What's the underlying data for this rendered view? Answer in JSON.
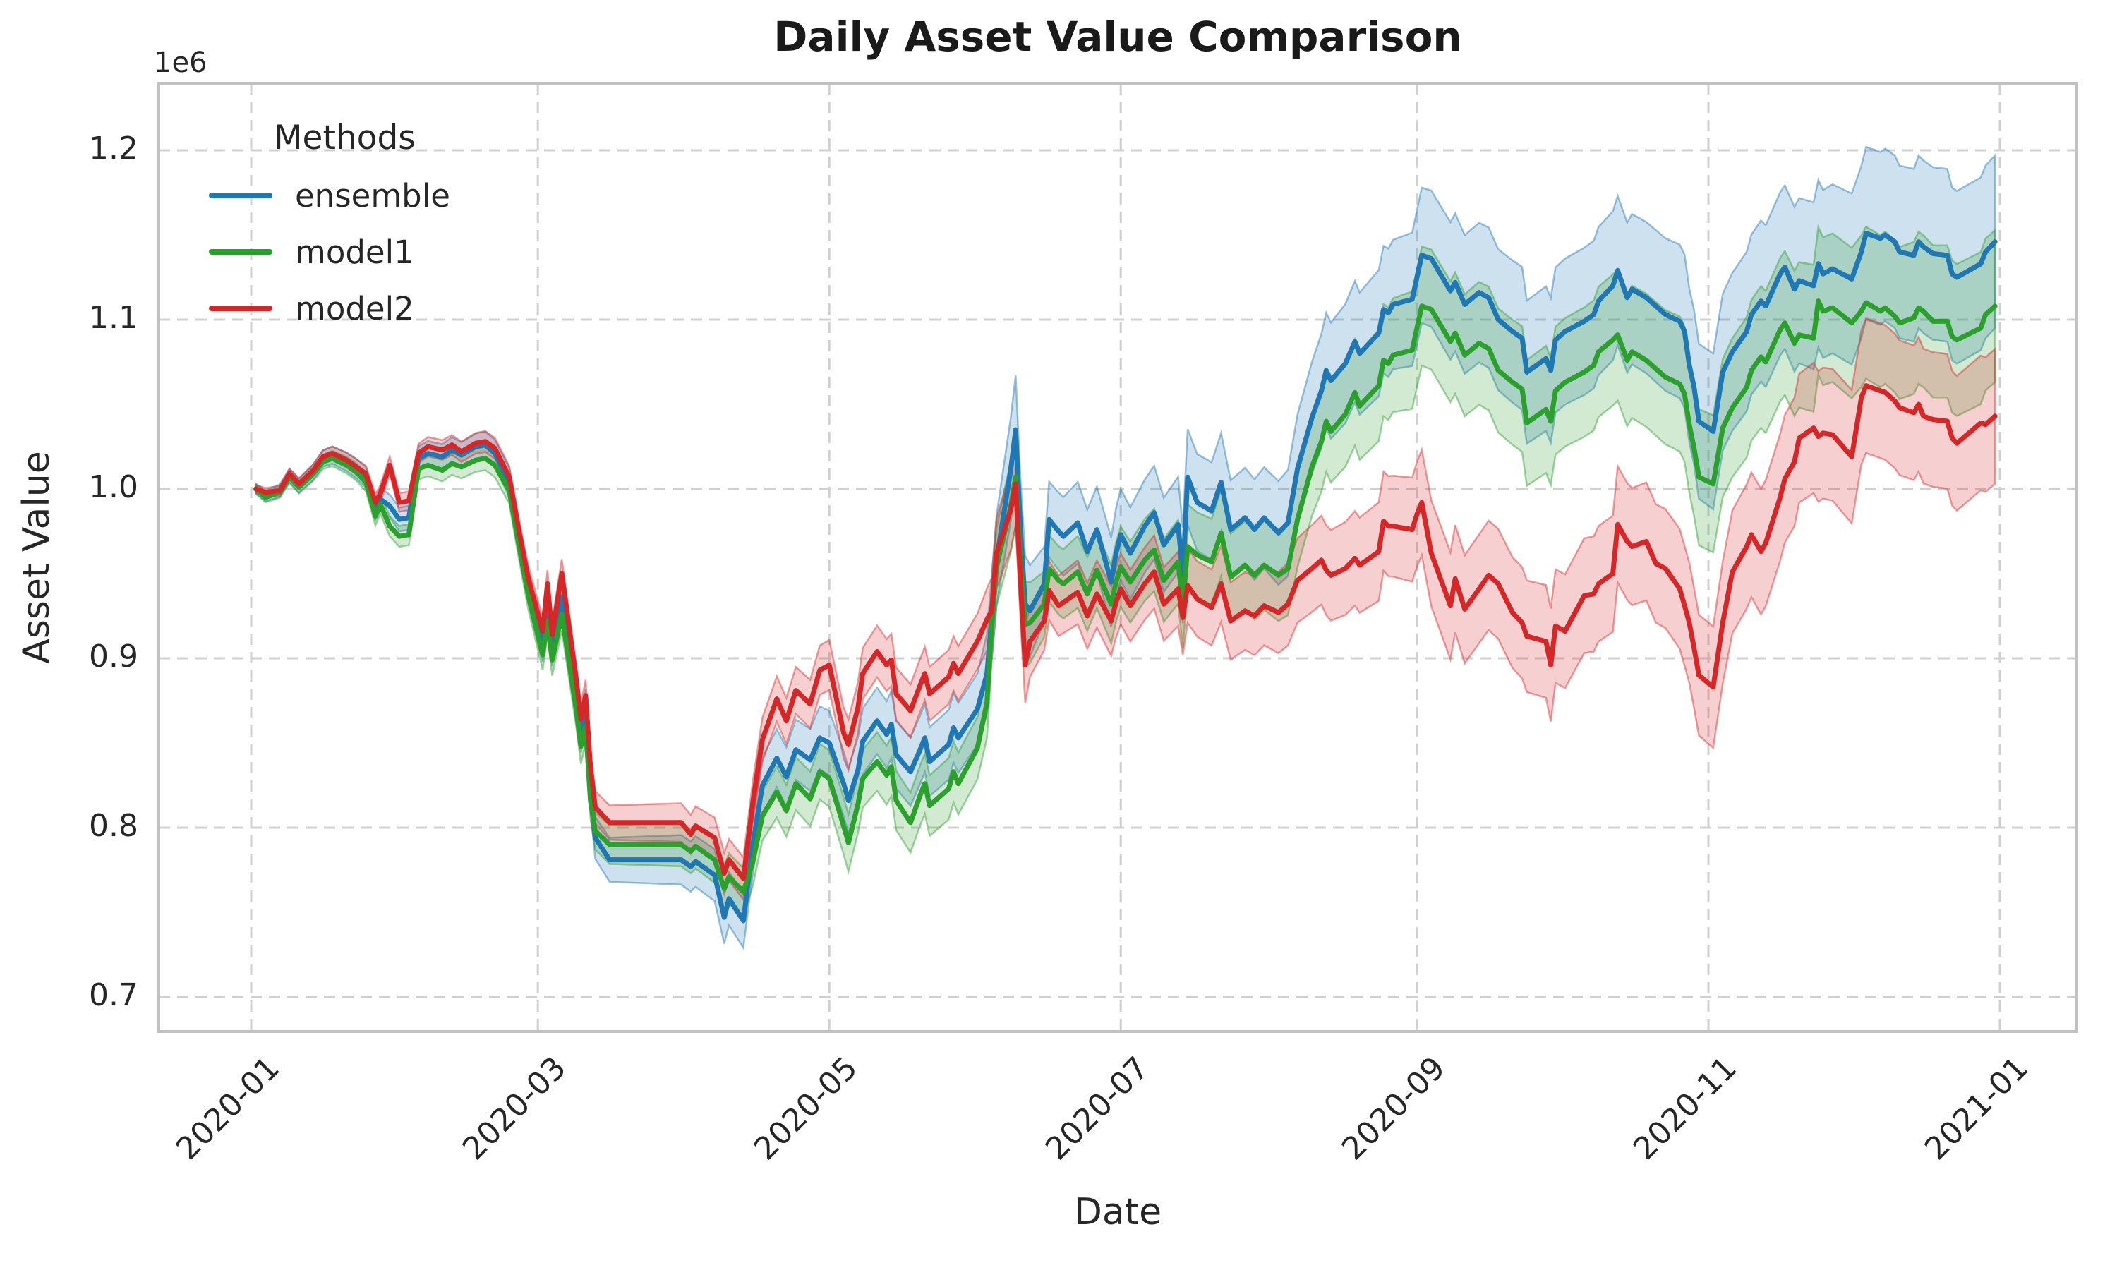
{
  "title": "Daily Asset Value Comparison",
  "axes": {
    "xlabel": "Date",
    "ylabel": "Asset Value",
    "offset_label": "1e6",
    "y_ticks": [
      {
        "label": "1.2",
        "value": 1.2
      },
      {
        "label": "1.1",
        "value": 1.1
      },
      {
        "label": "1.0",
        "value": 1.0
      },
      {
        "label": "0.9",
        "value": 0.9
      },
      {
        "label": "0.8",
        "value": 0.8
      },
      {
        "label": "0.7",
        "value": 0.7
      }
    ],
    "x_ticks": [
      {
        "label": "2020-01",
        "date": "2020-01-01"
      },
      {
        "label": "2020-03",
        "date": "2020-03-01"
      },
      {
        "label": "2020-05",
        "date": "2020-05-01"
      },
      {
        "label": "2020-07",
        "date": "2020-07-01"
      },
      {
        "label": "2020-09",
        "date": "2020-09-01"
      },
      {
        "label": "2020-11",
        "date": "2020-11-01"
      },
      {
        "label": "2021-01",
        "date": "2021-01-01"
      }
    ]
  },
  "legend": {
    "title": "Methods",
    "entries": [
      {
        "label": "ensemble",
        "color": "#1f77b4"
      },
      {
        "label": "model1",
        "color": "#2ca02c"
      },
      {
        "label": "model2",
        "color": "#d62728"
      }
    ]
  },
  "style": {
    "grid_color": "#d0d0d0",
    "spine_color": "#c2c2c2",
    "band_fill_opacity": 0.22,
    "band_edge_opacity": 0.45,
    "text_color": "#262626"
  },
  "chart_data": {
    "type": "line",
    "title": "Daily Asset Value Comparison",
    "xlabel": "Date",
    "ylabel": "Asset Value",
    "y_unit_multiplier": 1000000,
    "ylim": [
      0.6796,
      1.2396
    ],
    "grid": true,
    "legend_position": "upper left",
    "x": [
      "2020-01-02",
      "2020-01-04",
      "2020-01-07",
      "2020-01-09",
      "2020-01-11",
      "2020-01-14",
      "2020-01-16",
      "2020-01-18",
      "2020-01-21",
      "2020-01-23",
      "2020-01-25",
      "2020-01-27",
      "2020-01-28",
      "2020-01-30",
      "2020-02-01",
      "2020-02-03",
      "2020-02-05",
      "2020-02-07",
      "2020-02-10",
      "2020-02-12",
      "2020-02-14",
      "2020-02-17",
      "2020-02-19",
      "2020-02-21",
      "2020-02-24",
      "2020-02-26",
      "2020-02-28",
      "2020-03-02",
      "2020-03-03",
      "2020-03-04",
      "2020-03-06",
      "2020-03-09",
      "2020-03-10",
      "2020-03-11",
      "2020-03-12",
      "2020-03-13",
      "2020-03-16",
      "2020-03-18",
      "2020-03-20",
      "2020-03-24",
      "2020-03-27",
      "2020-03-31",
      "2020-04-02",
      "2020-04-03",
      "2020-04-07",
      "2020-04-09",
      "2020-04-10",
      "2020-04-13",
      "2020-04-15",
      "2020-04-17",
      "2020-04-20",
      "2020-04-22",
      "2020-04-24",
      "2020-04-27",
      "2020-04-29",
      "2020-05-01",
      "2020-05-04",
      "2020-05-05",
      "2020-05-07",
      "2020-05-08",
      "2020-05-11",
      "2020-05-13",
      "2020-05-14",
      "2020-05-15",
      "2020-05-18",
      "2020-05-20",
      "2020-05-21",
      "2020-05-22",
      "2020-05-26",
      "2020-05-27",
      "2020-05-28",
      "2020-06-01",
      "2020-06-03",
      "2020-06-04",
      "2020-06-05",
      "2020-06-08",
      "2020-06-09",
      "2020-06-10",
      "2020-06-11",
      "2020-06-12",
      "2020-06-15",
      "2020-06-16",
      "2020-06-18",
      "2020-06-19",
      "2020-06-22",
      "2020-06-24",
      "2020-06-26",
      "2020-06-29",
      "2020-06-30",
      "2020-07-01",
      "2020-07-03",
      "2020-07-06",
      "2020-07-08",
      "2020-07-10",
      "2020-07-13",
      "2020-07-14",
      "2020-07-15",
      "2020-07-17",
      "2020-07-20",
      "2020-07-22",
      "2020-07-24",
      "2020-07-27",
      "2020-07-29",
      "2020-07-31",
      "2020-08-03",
      "2020-08-05",
      "2020-08-07",
      "2020-08-10",
      "2020-08-12",
      "2020-08-13",
      "2020-08-14",
      "2020-08-17",
      "2020-08-19",
      "2020-08-20",
      "2020-08-24",
      "2020-08-25",
      "2020-08-26",
      "2020-08-27",
      "2020-08-31",
      "2020-09-01",
      "2020-09-02",
      "2020-09-04",
      "2020-09-08",
      "2020-09-09",
      "2020-09-11",
      "2020-09-14",
      "2020-09-16",
      "2020-09-18",
      "2020-09-21",
      "2020-09-23",
      "2020-09-24",
      "2020-09-28",
      "2020-09-29",
      "2020-09-30",
      "2020-10-02",
      "2020-10-06",
      "2020-10-08",
      "2020-10-09",
      "2020-10-12",
      "2020-10-13",
      "2020-10-15",
      "2020-10-16",
      "2020-10-19",
      "2020-10-21",
      "2020-10-23",
      "2020-10-26",
      "2020-10-27",
      "2020-10-28",
      "2020-10-29",
      "2020-10-30",
      "2020-11-02",
      "2020-11-04",
      "2020-11-06",
      "2020-11-09",
      "2020-11-10",
      "2020-11-12",
      "2020-11-13",
      "2020-11-16",
      "2020-11-17",
      "2020-11-19",
      "2020-11-20",
      "2020-11-23",
      "2020-11-24",
      "2020-11-25",
      "2020-11-27",
      "2020-12-01",
      "2020-12-03",
      "2020-12-04",
      "2020-12-07",
      "2020-12-08",
      "2020-12-10",
      "2020-12-11",
      "2020-12-14",
      "2020-12-15",
      "2020-12-16",
      "2020-12-18",
      "2020-12-21",
      "2020-12-22",
      "2020-12-23",
      "2020-12-28",
      "2020-12-29",
      "2020-12-31"
    ],
    "series": [
      {
        "name": "ensemble",
        "color": "#1f77b4",
        "band_scale": 1.0,
        "values": [
          1.0,
          0.996,
          0.999,
          1.008,
          1.002,
          1.01,
          1.018,
          1.02,
          1.016,
          1.012,
          1.007,
          0.988,
          0.994,
          0.99,
          0.982,
          0.983,
          1.018,
          1.021,
          1.019,
          1.023,
          1.02,
          1.025,
          1.026,
          1.021,
          1.004,
          0.972,
          0.942,
          0.908,
          0.93,
          0.906,
          0.936,
          0.878,
          0.856,
          0.87,
          0.822,
          0.794,
          0.781,
          0.781,
          0.781,
          0.781,
          0.781,
          0.781,
          0.777,
          0.78,
          0.772,
          0.747,
          0.758,
          0.745,
          0.79,
          0.825,
          0.841,
          0.83,
          0.846,
          0.84,
          0.853,
          0.85,
          0.826,
          0.816,
          0.834,
          0.851,
          0.863,
          0.855,
          0.861,
          0.843,
          0.833,
          0.846,
          0.853,
          0.839,
          0.849,
          0.859,
          0.853,
          0.87,
          0.891,
          0.924,
          0.958,
          1.012,
          1.035,
          0.976,
          0.932,
          0.928,
          0.944,
          0.982,
          0.975,
          0.972,
          0.98,
          0.963,
          0.976,
          0.945,
          0.962,
          0.973,
          0.962,
          0.978,
          0.986,
          0.967,
          0.979,
          0.949,
          1.007,
          0.992,
          0.987,
          1.004,
          0.976,
          0.983,
          0.976,
          0.983,
          0.974,
          0.98,
          1.012,
          1.042,
          1.058,
          1.07,
          1.064,
          1.074,
          1.087,
          1.08,
          1.092,
          1.106,
          1.104,
          1.109,
          1.112,
          1.125,
          1.138,
          1.136,
          1.117,
          1.122,
          1.109,
          1.116,
          1.113,
          1.1,
          1.093,
          1.089,
          1.069,
          1.077,
          1.07,
          1.088,
          1.093,
          1.099,
          1.103,
          1.111,
          1.12,
          1.129,
          1.113,
          1.118,
          1.113,
          1.108,
          1.103,
          1.099,
          1.093,
          1.073,
          1.06,
          1.04,
          1.034,
          1.069,
          1.081,
          1.093,
          1.103,
          1.111,
          1.108,
          1.127,
          1.131,
          1.118,
          1.123,
          1.12,
          1.133,
          1.127,
          1.13,
          1.124,
          1.14,
          1.151,
          1.148,
          1.15,
          1.146,
          1.14,
          1.138,
          1.146,
          1.143,
          1.139,
          1.138,
          1.127,
          1.125,
          1.133,
          1.14,
          1.146
        ]
      },
      {
        "name": "model1",
        "color": "#2ca02c",
        "band_scale": 0.88,
        "values": [
          1.0,
          0.995,
          0.998,
          1.007,
          1.001,
          1.009,
          1.016,
          1.018,
          1.014,
          1.01,
          1.004,
          0.984,
          0.991,
          0.978,
          0.972,
          0.973,
          1.012,
          1.014,
          1.011,
          1.015,
          1.013,
          1.017,
          1.018,
          1.014,
          0.999,
          0.967,
          0.937,
          0.902,
          0.922,
          0.899,
          0.926,
          0.87,
          0.848,
          0.86,
          0.816,
          0.798,
          0.79,
          0.79,
          0.79,
          0.79,
          0.79,
          0.79,
          0.786,
          0.789,
          0.781,
          0.764,
          0.771,
          0.762,
          0.78,
          0.807,
          0.821,
          0.81,
          0.826,
          0.817,
          0.833,
          0.829,
          0.801,
          0.791,
          0.814,
          0.829,
          0.839,
          0.831,
          0.836,
          0.816,
          0.803,
          0.819,
          0.826,
          0.813,
          0.823,
          0.833,
          0.826,
          0.847,
          0.874,
          0.921,
          0.954,
          0.99,
          1.007,
          0.956,
          0.92,
          0.921,
          0.932,
          0.953,
          0.946,
          0.944,
          0.951,
          0.938,
          0.952,
          0.932,
          0.945,
          0.954,
          0.945,
          0.958,
          0.964,
          0.946,
          0.957,
          0.931,
          0.966,
          0.961,
          0.957,
          0.974,
          0.948,
          0.955,
          0.949,
          0.955,
          0.949,
          0.953,
          0.982,
          1.013,
          1.028,
          1.04,
          1.034,
          1.044,
          1.057,
          1.049,
          1.061,
          1.076,
          1.074,
          1.079,
          1.082,
          1.095,
          1.108,
          1.106,
          1.087,
          1.092,
          1.079,
          1.086,
          1.083,
          1.07,
          1.063,
          1.059,
          1.039,
          1.047,
          1.04,
          1.058,
          1.063,
          1.069,
          1.073,
          1.081,
          1.088,
          1.091,
          1.076,
          1.081,
          1.076,
          1.071,
          1.066,
          1.062,
          1.056,
          1.038,
          1.024,
          1.007,
          1.003,
          1.036,
          1.048,
          1.06,
          1.07,
          1.078,
          1.075,
          1.094,
          1.098,
          1.086,
          1.091,
          1.089,
          1.111,
          1.105,
          1.107,
          1.098,
          1.105,
          1.11,
          1.105,
          1.107,
          1.102,
          1.098,
          1.101,
          1.107,
          1.105,
          1.099,
          1.099,
          1.09,
          1.088,
          1.095,
          1.103,
          1.108
        ]
      },
      {
        "name": "model2",
        "color": "#d62728",
        "band_scale": 0.78,
        "values": [
          1.0,
          0.998,
          0.999,
          1.009,
          1.003,
          1.011,
          1.019,
          1.021,
          1.017,
          1.013,
          1.009,
          0.992,
          0.997,
          1.014,
          0.992,
          0.993,
          1.021,
          1.025,
          1.023,
          1.026,
          1.022,
          1.027,
          1.028,
          1.024,
          1.007,
          0.976,
          0.947,
          0.916,
          0.944,
          0.914,
          0.95,
          0.888,
          0.864,
          0.878,
          0.836,
          0.812,
          0.803,
          0.803,
          0.803,
          0.803,
          0.803,
          0.803,
          0.796,
          0.801,
          0.794,
          0.773,
          0.781,
          0.77,
          0.815,
          0.852,
          0.876,
          0.863,
          0.881,
          0.873,
          0.893,
          0.896,
          0.856,
          0.849,
          0.871,
          0.891,
          0.904,
          0.896,
          0.899,
          0.879,
          0.869,
          0.884,
          0.891,
          0.879,
          0.889,
          0.897,
          0.891,
          0.91,
          0.923,
          0.928,
          0.962,
          0.988,
          1.003,
          0.946,
          0.896,
          0.91,
          0.922,
          0.94,
          0.931,
          0.933,
          0.939,
          0.925,
          0.938,
          0.922,
          0.933,
          0.941,
          0.931,
          0.944,
          0.951,
          0.932,
          0.941,
          0.924,
          0.943,
          0.935,
          0.93,
          0.944,
          0.922,
          0.928,
          0.925,
          0.931,
          0.927,
          0.932,
          0.946,
          0.953,
          0.958,
          0.952,
          0.949,
          0.953,
          0.959,
          0.955,
          0.963,
          0.981,
          0.978,
          0.978,
          0.976,
          0.985,
          0.992,
          0.962,
          0.931,
          0.947,
          0.929,
          0.941,
          0.949,
          0.944,
          0.927,
          0.921,
          0.913,
          0.91,
          0.896,
          0.919,
          0.916,
          0.937,
          0.938,
          0.944,
          0.95,
          0.979,
          0.969,
          0.966,
          0.969,
          0.956,
          0.953,
          0.941,
          0.931,
          0.921,
          0.906,
          0.89,
          0.883,
          0.921,
          0.951,
          0.966,
          0.973,
          0.963,
          0.968,
          0.995,
          1.006,
          1.016,
          1.03,
          1.036,
          1.031,
          1.033,
          1.032,
          1.019,
          1.054,
          1.061,
          1.058,
          1.057,
          1.052,
          1.048,
          1.045,
          1.05,
          1.043,
          1.041,
          1.04,
          1.03,
          1.027,
          1.039,
          1.038,
          1.043
        ]
      }
    ],
    "band_halfwidth_anchors": [
      {
        "date": "2020-01-02",
        "w": 0.003
      },
      {
        "date": "2020-02-01",
        "w": 0.007
      },
      {
        "date": "2020-02-21",
        "w": 0.008
      },
      {
        "date": "2020-03-16",
        "w": 0.013
      },
      {
        "date": "2020-04-13",
        "w": 0.016
      },
      {
        "date": "2020-05-01",
        "w": 0.019
      },
      {
        "date": "2020-06-01",
        "w": 0.021
      },
      {
        "date": "2020-06-09",
        "w": 0.032
      },
      {
        "date": "2020-06-15",
        "w": 0.022
      },
      {
        "date": "2020-07-01",
        "w": 0.027
      },
      {
        "date": "2020-08-01",
        "w": 0.03
      },
      {
        "date": "2020-08-13",
        "w": 0.034
      },
      {
        "date": "2020-09-02",
        "w": 0.04
      },
      {
        "date": "2020-10-01",
        "w": 0.043
      },
      {
        "date": "2020-11-02",
        "w": 0.046
      },
      {
        "date": "2020-12-04",
        "w": 0.051
      },
      {
        "date": "2020-12-31",
        "w": 0.051
      }
    ]
  }
}
